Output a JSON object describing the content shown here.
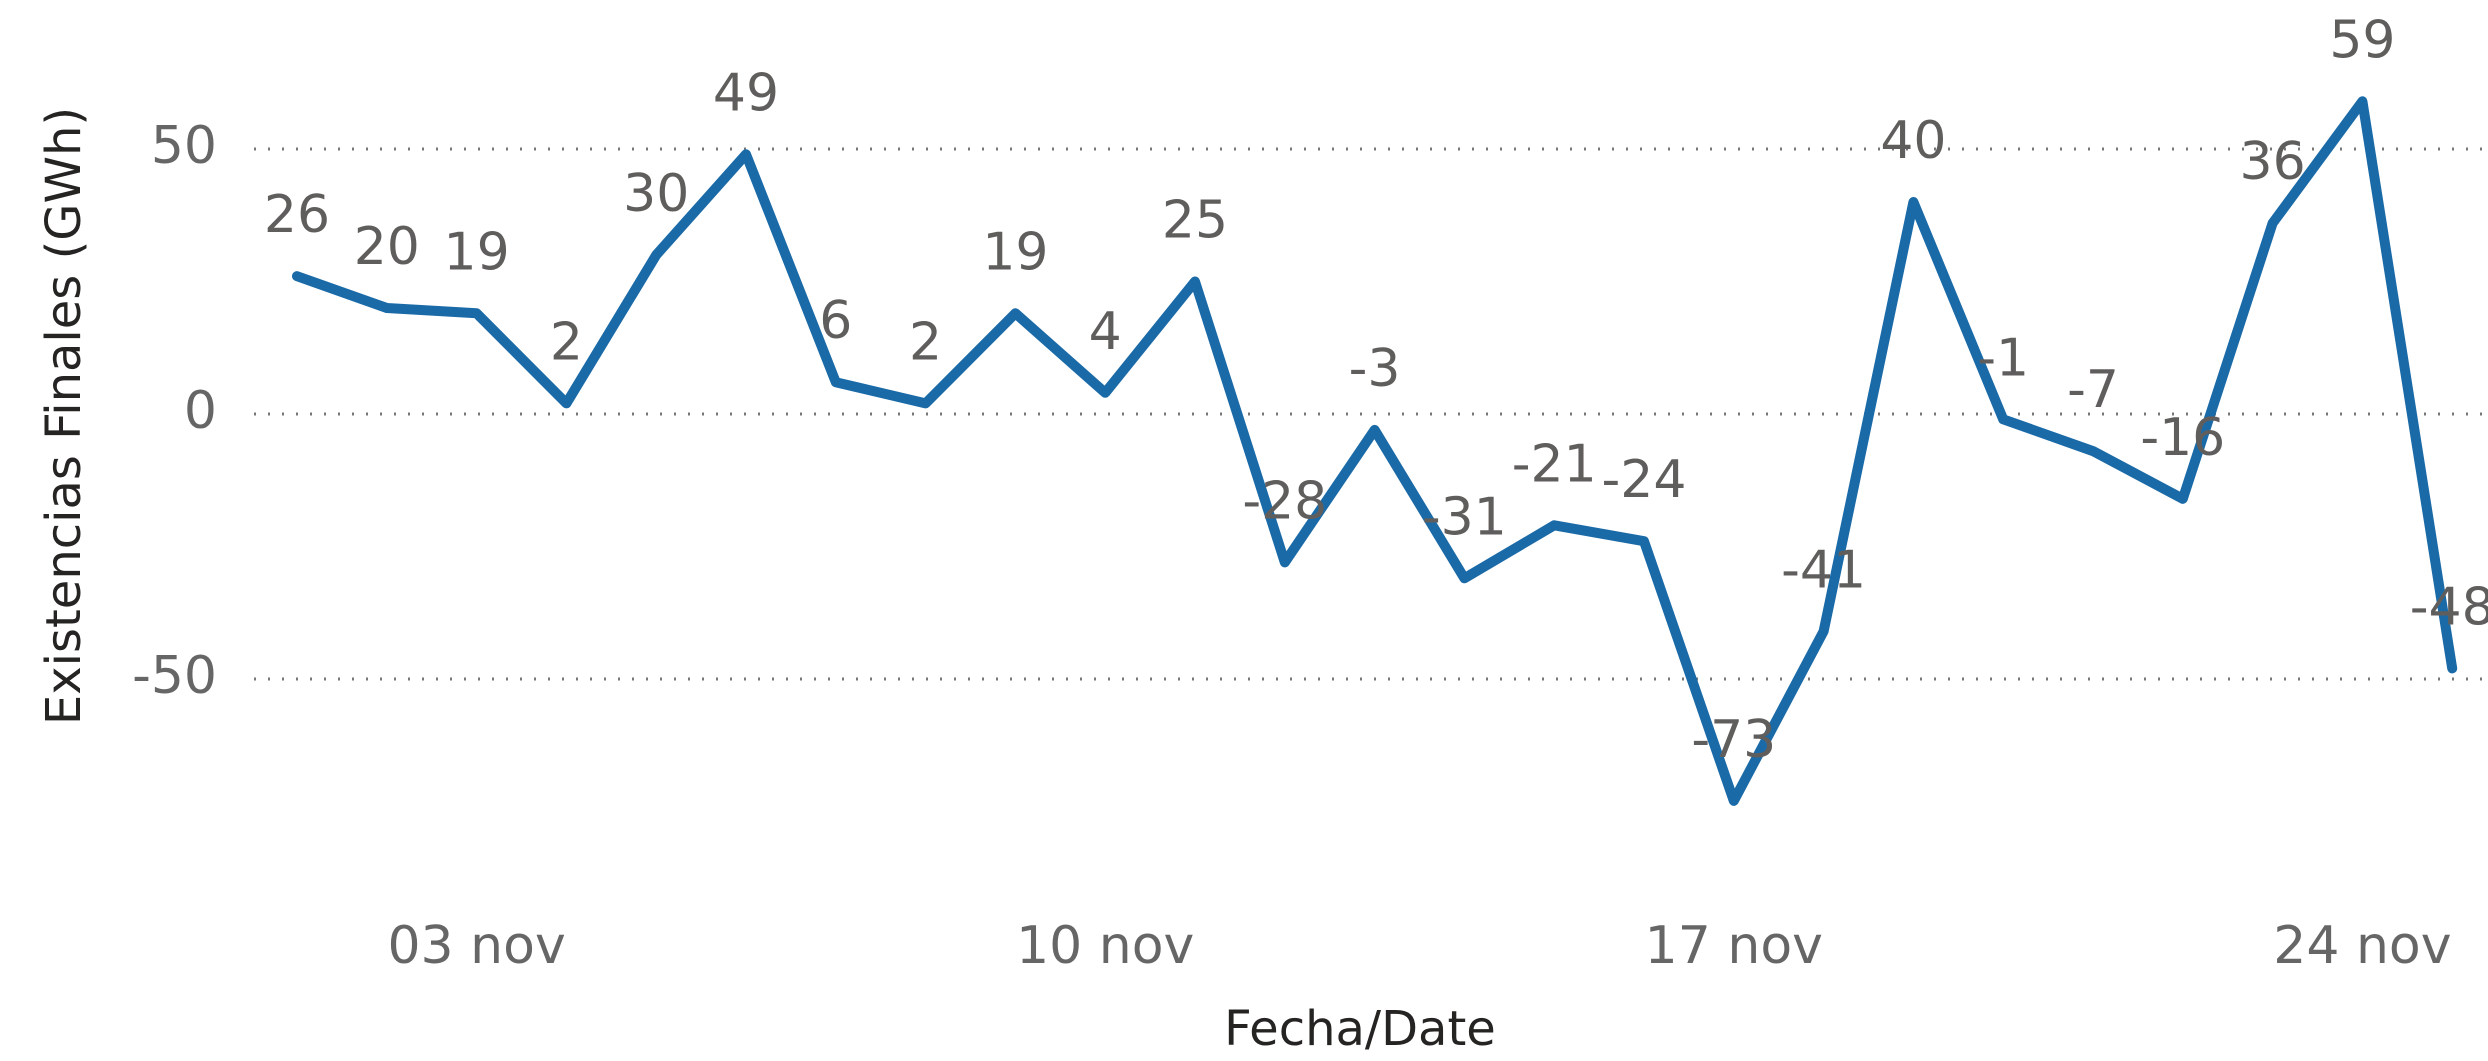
{
  "chart_data": {
    "type": "line",
    "x_label": "Fecha/Date",
    "y_label": "Existencias Finales (GWh)",
    "categories": [
      null,
      null,
      "03 nov",
      null,
      null,
      null,
      null,
      null,
      null,
      "10 nov",
      null,
      null,
      null,
      null,
      null,
      null,
      "17 nov",
      null,
      null,
      null,
      null,
      null,
      null,
      "24 nov",
      null
    ],
    "series": [
      {
        "name": "Existencias Finales",
        "color": "#1a6aa8",
        "values": [
          26,
          20,
          19,
          2,
          30,
          49,
          6,
          2,
          19,
          4,
          25,
          -28,
          -3,
          -31,
          -21,
          -24,
          -73,
          -41,
          40,
          -1,
          -7,
          -16,
          36,
          59,
          -48
        ]
      }
    ],
    "ylim": [
      -90,
      70
    ],
    "yticks": [
      -50,
      0,
      50
    ],
    "grid": true
  }
}
